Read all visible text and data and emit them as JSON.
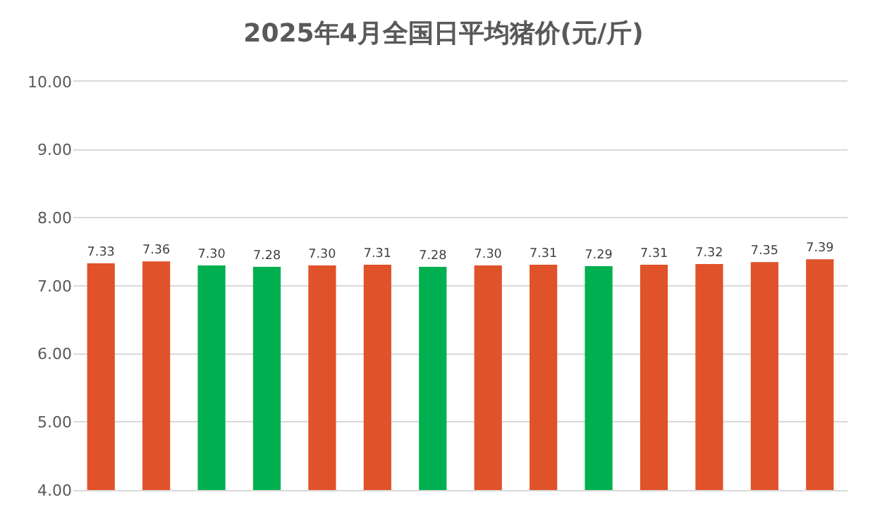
{
  "chart_data": {
    "type": "bar",
    "title": "2025年4月全国日平均猪价(元/斤)",
    "categories": [
      null,
      null,
      null,
      null,
      null,
      null,
      null,
      null,
      null,
      null,
      null,
      null,
      null,
      null
    ],
    "values": [
      7.33,
      7.36,
      7.3,
      7.28,
      7.3,
      7.31,
      7.28,
      7.3,
      7.31,
      7.29,
      7.31,
      7.32,
      7.35,
      7.39
    ],
    "value_labels": [
      "7.33",
      "7.36",
      "7.30",
      "7.28",
      "7.30",
      "7.31",
      "7.28",
      "7.30",
      "7.31",
      "7.29",
      "7.31",
      "7.32",
      "7.35",
      "7.39"
    ],
    "colors": [
      "#e0522a",
      "#e0522a",
      "#00b050",
      "#00b050",
      "#e0522a",
      "#e0522a",
      "#00b050",
      "#e0522a",
      "#e0522a",
      "#00b050",
      "#e0522a",
      "#e0522a",
      "#e0522a",
      "#e0522a"
    ],
    "ylim": [
      4,
      10
    ],
    "yticks": [
      {
        "value": 4,
        "label": "4.00"
      },
      {
        "value": 5,
        "label": "5.00"
      },
      {
        "value": 6,
        "label": "6.00"
      },
      {
        "value": 7,
        "label": "7.00"
      },
      {
        "value": 8,
        "label": "8.00"
      },
      {
        "value": 9,
        "label": "9.00"
      },
      {
        "value": 10,
        "label": "10.00"
      }
    ],
    "grid": "y"
  }
}
